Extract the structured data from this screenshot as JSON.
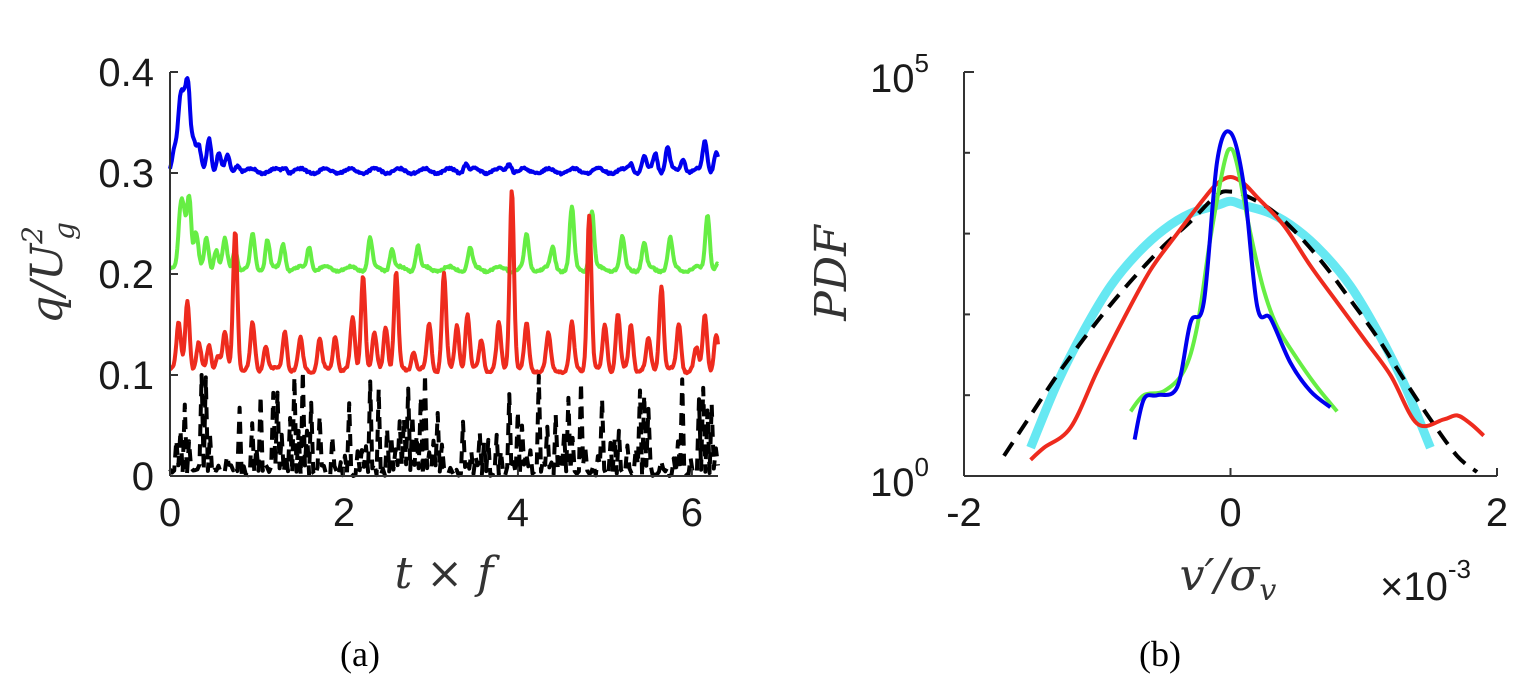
{
  "chart_data": [
    {
      "type": "line",
      "panel_label": "(a)",
      "xlabel": "t × f",
      "ylabel_base": "q/U",
      "ylabel_sup": "2",
      "ylabel_sub": "g",
      "xlim": [
        0,
        6.3
      ],
      "ylim": [
        0,
        0.4
      ],
      "xticks": [
        0,
        2,
        4,
        6
      ],
      "xtick_labels": [
        "0",
        "2",
        "4",
        "6"
      ],
      "yticks": [
        0,
        0.1,
        0.2,
        0.3,
        0.4
      ],
      "ytick_labels": [
        "0",
        "0.1",
        "0.2",
        "0.3",
        "0.4"
      ],
      "series": [
        {
          "name": "blue",
          "color": "#0000ee",
          "style": "solid",
          "baseline": 0.302,
          "peaks": [
            [
              0.05,
              0.32
            ],
            [
              0.1,
              0.33
            ],
            [
              0.13,
              0.355
            ],
            [
              0.17,
              0.35
            ],
            [
              0.21,
              0.378
            ],
            [
              0.27,
              0.33
            ],
            [
              0.33,
              0.325
            ],
            [
              0.45,
              0.335
            ],
            [
              0.56,
              0.32
            ],
            [
              0.66,
              0.315
            ],
            [
              0.78,
              0.31
            ],
            [
              1.32,
              0.307
            ],
            [
              3.4,
              0.31
            ],
            [
              3.9,
              0.311
            ],
            [
              5.3,
              0.31
            ],
            [
              5.45,
              0.315
            ],
            [
              5.58,
              0.32
            ],
            [
              5.72,
              0.325
            ],
            [
              5.9,
              0.315
            ],
            [
              6.15,
              0.333
            ],
            [
              6.28,
              0.32
            ]
          ]
        },
        {
          "name": "green",
          "color": "#66ee44",
          "style": "solid",
          "baseline": 0.205,
          "peaks": [
            [
              0.12,
              0.255
            ],
            [
              0.16,
              0.25
            ],
            [
              0.22,
              0.278
            ],
            [
              0.3,
              0.24
            ],
            [
              0.42,
              0.235
            ],
            [
              0.53,
              0.225
            ],
            [
              0.63,
              0.233
            ],
            [
              0.75,
              0.225
            ],
            [
              0.95,
              0.238
            ],
            [
              1.12,
              0.235
            ],
            [
              1.3,
              0.23
            ],
            [
              1.6,
              0.228
            ],
            [
              2.3,
              0.235
            ],
            [
              2.55,
              0.225
            ],
            [
              2.85,
              0.228
            ],
            [
              3.45,
              0.225
            ],
            [
              4.1,
              0.238
            ],
            [
              4.4,
              0.225
            ],
            [
              4.62,
              0.265
            ],
            [
              4.85,
              0.263
            ],
            [
              5.2,
              0.235
            ],
            [
              5.45,
              0.23
            ],
            [
              5.75,
              0.235
            ],
            [
              6.18,
              0.26
            ],
            [
              6.3,
              0.21
            ]
          ]
        },
        {
          "name": "red",
          "color": "#ee2b1e",
          "style": "solid",
          "baseline": 0.105,
          "peaks": [
            [
              0.1,
              0.15
            ],
            [
              0.2,
              0.175
            ],
            [
              0.33,
              0.13
            ],
            [
              0.45,
              0.13
            ],
            [
              0.55,
              0.12
            ],
            [
              0.63,
              0.14
            ],
            [
              0.75,
              0.245
            ],
            [
              0.95,
              0.15
            ],
            [
              1.1,
              0.13
            ],
            [
              1.32,
              0.145
            ],
            [
              1.5,
              0.135
            ],
            [
              1.72,
              0.135
            ],
            [
              1.9,
              0.14
            ],
            [
              2.1,
              0.155
            ],
            [
              2.22,
              0.2
            ],
            [
              2.35,
              0.14
            ],
            [
              2.48,
              0.15
            ],
            [
              2.6,
              0.2
            ],
            [
              2.8,
              0.125
            ],
            [
              2.98,
              0.15
            ],
            [
              3.15,
              0.2
            ],
            [
              3.3,
              0.15
            ],
            [
              3.42,
              0.16
            ],
            [
              3.58,
              0.135
            ],
            [
              3.78,
              0.15
            ],
            [
              3.93,
              0.285
            ],
            [
              4.1,
              0.15
            ],
            [
              4.35,
              0.14
            ],
            [
              4.62,
              0.15
            ],
            [
              4.82,
              0.26
            ],
            [
              5.0,
              0.15
            ],
            [
              5.15,
              0.16
            ],
            [
              5.3,
              0.15
            ],
            [
              5.5,
              0.135
            ],
            [
              5.65,
              0.19
            ],
            [
              5.85,
              0.15
            ],
            [
              6.05,
              0.125
            ],
            [
              6.15,
              0.16
            ],
            [
              6.28,
              0.14
            ]
          ]
        },
        {
          "name": "black",
          "color": "#000000",
          "style": "dashed",
          "baseline": 0.0,
          "seed": 7,
          "count": 260,
          "max": 0.105
        }
      ]
    },
    {
      "type": "line",
      "panel_label": "(b)",
      "xlabel": "v′/σ",
      "xlabel_sub": "v",
      "ylabel": "PDF",
      "xlim": [
        -2,
        2
      ],
      "yscale": "log",
      "ylim_exponents": [
        0,
        5
      ],
      "xticks": [
        -2,
        0,
        2
      ],
      "xtick_labels": [
        "-2",
        "0",
        "2"
      ],
      "ytick_base": "10",
      "ytick_exponents": [
        "0",
        "5"
      ],
      "x_multiplier_base": "×10",
      "x_multiplier_exponent": "-3",
      "series": [
        {
          "name": "cyan",
          "color": "#66e8f2",
          "width": 9,
          "x": [
            -1.5,
            -1.3,
            -1.1,
            -0.9,
            -0.7,
            -0.5,
            -0.3,
            -0.1,
            0,
            0.1,
            0.3,
            0.5,
            0.7,
            0.9,
            1.1,
            1.3,
            1.5
          ],
          "y": [
            0.35,
            1.15,
            1.8,
            2.35,
            2.75,
            3.05,
            3.25,
            3.35,
            3.4,
            3.35,
            3.25,
            3.05,
            2.75,
            2.35,
            1.8,
            1.15,
            0.35
          ]
        },
        {
          "name": "black-dashed",
          "color": "#000000",
          "width": 4,
          "dashed": true,
          "x": [
            -1.7,
            -1.5,
            -1.3,
            -1.1,
            -0.9,
            -0.7,
            -0.5,
            -0.3,
            -0.1,
            0,
            0.1,
            0.3,
            0.5,
            0.7,
            0.9,
            1.1,
            1.3,
            1.5,
            1.7,
            1.85
          ],
          "y": [
            0.25,
            0.75,
            1.25,
            1.7,
            2.12,
            2.5,
            2.85,
            3.15,
            3.48,
            3.52,
            3.48,
            3.3,
            3.0,
            2.62,
            2.18,
            1.72,
            1.2,
            0.7,
            0.25,
            0.05
          ]
        },
        {
          "name": "red",
          "color": "#ee2b1e",
          "width": 4,
          "x": [
            -1.5,
            -1.4,
            -1.2,
            -1.0,
            -0.8,
            -0.6,
            -0.4,
            -0.2,
            -0.1,
            0,
            0.1,
            0.2,
            0.4,
            0.6,
            0.8,
            1.0,
            1.2,
            1.4,
            1.6,
            1.7,
            1.8,
            1.9
          ],
          "y": [
            0.2,
            0.35,
            0.6,
            1.3,
            1.95,
            2.55,
            3.0,
            3.43,
            3.62,
            3.7,
            3.62,
            3.45,
            3.1,
            2.6,
            2.15,
            1.7,
            1.25,
            0.65,
            0.7,
            0.75,
            0.65,
            0.5
          ]
        },
        {
          "name": "green",
          "color": "#66ee44",
          "width": 4,
          "x": [
            -0.75,
            -0.65,
            -0.5,
            -0.35,
            -0.25,
            -0.15,
            -0.05,
            0,
            0.05,
            0.15,
            0.25,
            0.35,
            0.5,
            0.65,
            0.8
          ],
          "y": [
            0.8,
            1.0,
            1.05,
            1.3,
            1.85,
            2.95,
            3.85,
            4.05,
            3.85,
            3.0,
            2.3,
            1.85,
            1.45,
            1.1,
            0.8
          ]
        },
        {
          "name": "blue",
          "color": "#0000ee",
          "width": 4,
          "x": [
            -0.72,
            -0.65,
            -0.55,
            -0.4,
            -0.3,
            -0.2,
            -0.1,
            0,
            0.1,
            0.2,
            0.3,
            0.45,
            0.6,
            0.75
          ],
          "y": [
            0.45,
            0.95,
            1.0,
            1.1,
            1.9,
            2.15,
            3.9,
            4.25,
            3.6,
            2.1,
            1.95,
            1.4,
            1.05,
            0.85
          ]
        }
      ]
    }
  ]
}
